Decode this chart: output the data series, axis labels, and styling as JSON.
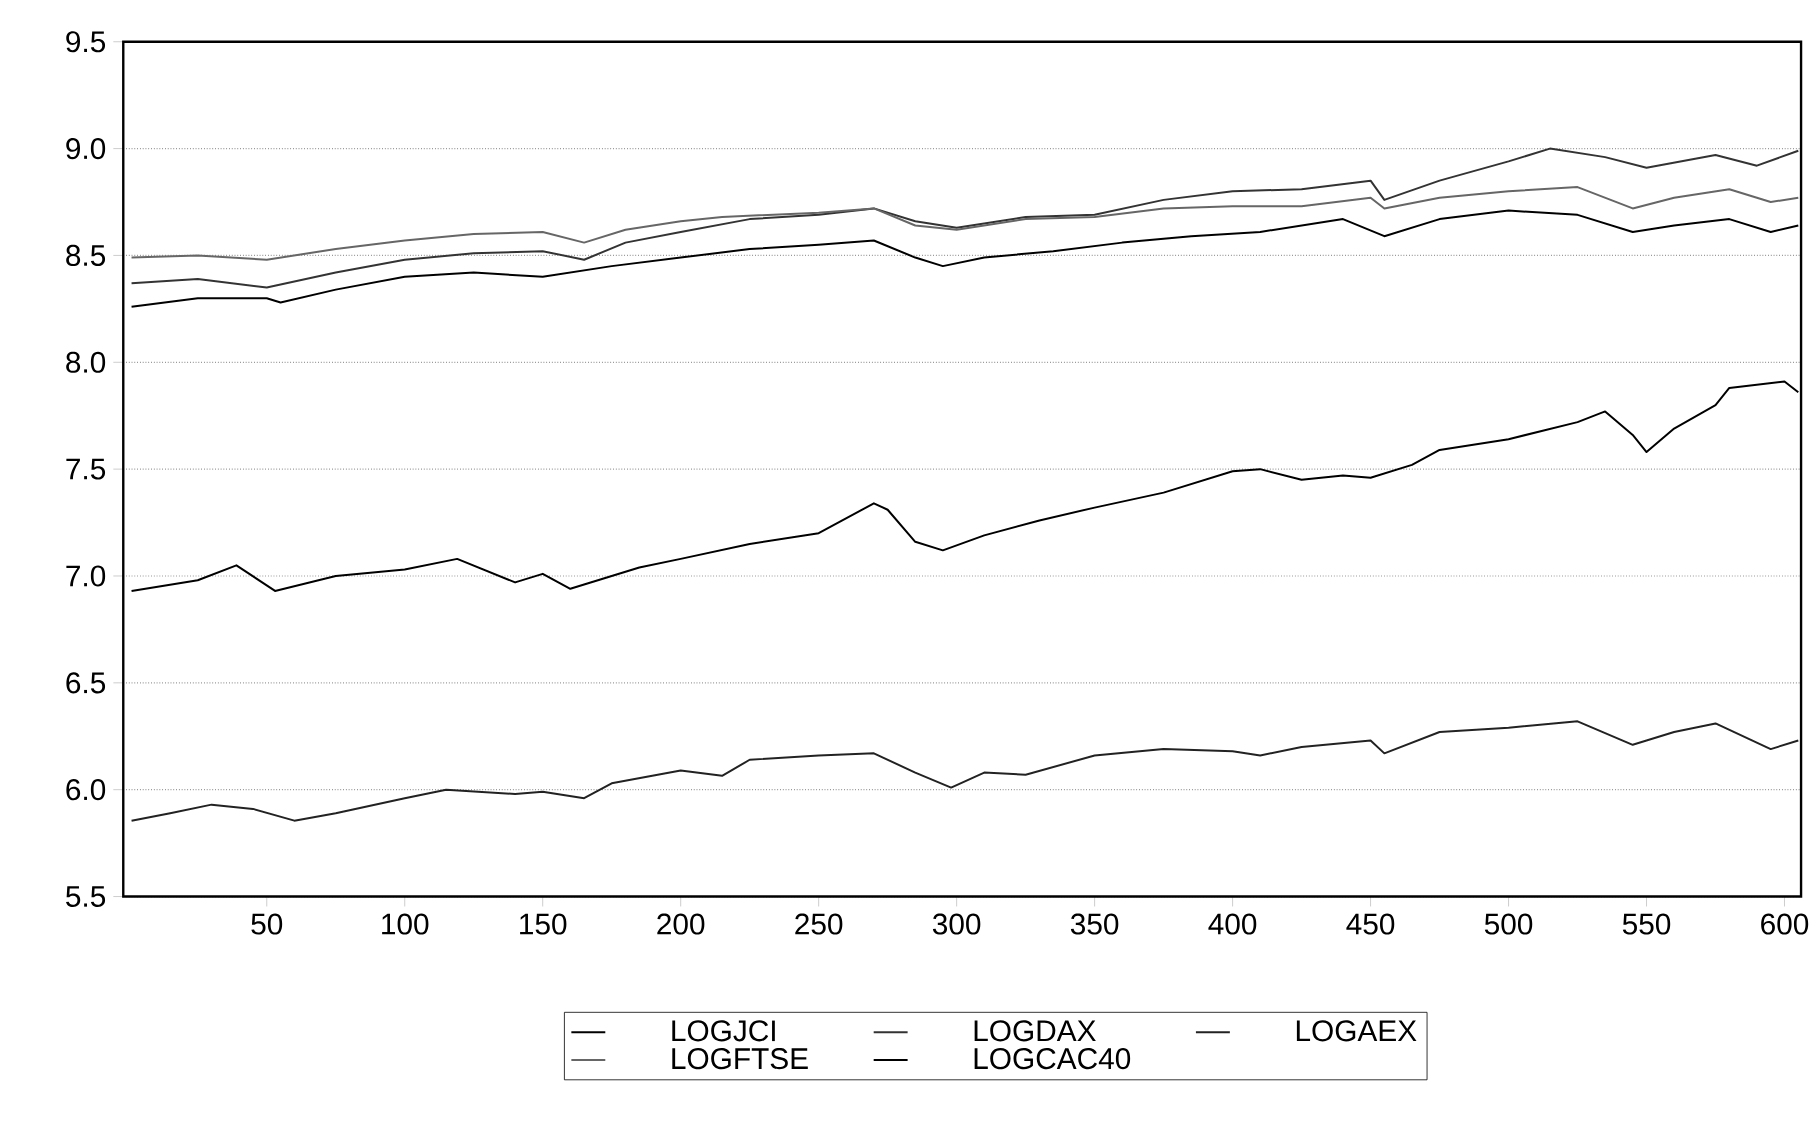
{
  "chart_data": {
    "type": "line",
    "x": [
      1,
      25,
      50,
      75,
      100,
      125,
      150,
      165,
      180,
      200,
      215,
      250,
      270,
      285,
      300,
      325,
      350,
      375,
      400,
      425,
      450,
      455,
      475,
      500,
      525,
      545,
      560,
      580,
      595,
      605
    ],
    "series": [
      {
        "name": "LOGJCI",
        "color": "#000000",
        "x": [
          1,
          25,
          39,
          53,
          75,
          100,
          119,
          140,
          150,
          160,
          175,
          185,
          200,
          225,
          250,
          270,
          275,
          285,
          295,
          310,
          330,
          350,
          375,
          400,
          410,
          425,
          440,
          450,
          465,
          475,
          500,
          525,
          535,
          545,
          550,
          560,
          575,
          580,
          600,
          605
        ],
        "values": [
          6.93,
          6.98,
          7.05,
          6.93,
          7.0,
          7.03,
          7.08,
          6.97,
          7.01,
          6.94,
          7.0,
          7.04,
          7.08,
          7.15,
          7.2,
          7.34,
          7.31,
          7.16,
          7.12,
          7.19,
          7.26,
          7.32,
          7.39,
          7.49,
          7.5,
          7.45,
          7.47,
          7.46,
          7.52,
          7.59,
          7.64,
          7.72,
          7.77,
          7.66,
          7.58,
          7.69,
          7.8,
          7.88,
          7.91,
          7.86
        ]
      },
      {
        "name": "LOGDAX",
        "color": "#333333",
        "x": [
          1,
          25,
          50,
          75,
          100,
          125,
          150,
          165,
          180,
          200,
          225,
          250,
          270,
          285,
          300,
          325,
          350,
          375,
          400,
          425,
          450,
          455,
          475,
          500,
          515,
          535,
          550,
          575,
          590,
          605
        ],
        "values": [
          8.37,
          8.39,
          8.35,
          8.42,
          8.48,
          8.51,
          8.52,
          8.48,
          8.56,
          8.61,
          8.67,
          8.69,
          8.72,
          8.66,
          8.63,
          8.68,
          8.69,
          8.76,
          8.8,
          8.81,
          8.85,
          8.76,
          8.85,
          8.94,
          9.0,
          8.96,
          8.91,
          8.97,
          8.92,
          8.99
        ]
      },
      {
        "name": "LOGAEX",
        "color": "#222222",
        "x": [
          1,
          15,
          30,
          45,
          60,
          75,
          100,
          115,
          140,
          150,
          165,
          175,
          200,
          215,
          225,
          250,
          270,
          285,
          298,
          310,
          325,
          350,
          375,
          400,
          410,
          425,
          450,
          455,
          475,
          500,
          525,
          545,
          560,
          575,
          595,
          605
        ],
        "values": [
          5.855,
          5.89,
          5.93,
          5.91,
          5.855,
          5.89,
          5.96,
          6.0,
          5.98,
          5.99,
          5.96,
          6.03,
          6.09,
          6.065,
          6.14,
          6.16,
          6.17,
          6.08,
          6.01,
          6.08,
          6.07,
          6.16,
          6.19,
          6.18,
          6.16,
          6.2,
          6.23,
          6.17,
          6.27,
          6.29,
          6.32,
          6.21,
          6.27,
          6.31,
          6.19,
          6.23
        ]
      },
      {
        "name": "LOGFTSE",
        "color": "#666666",
        "values": [
          8.49,
          8.5,
          8.48,
          8.53,
          8.57,
          8.6,
          8.61,
          8.56,
          8.62,
          8.66,
          8.68,
          8.7,
          8.72,
          8.64,
          8.62,
          8.67,
          8.68,
          8.72,
          8.73,
          8.73,
          8.77,
          8.72,
          8.77,
          8.8,
          8.82,
          8.72,
          8.77,
          8.81,
          8.75,
          8.77
        ]
      },
      {
        "name": "LOGCAC40",
        "color": "#000000",
        "x": [
          1,
          25,
          50,
          55,
          75,
          100,
          125,
          150,
          175,
          200,
          225,
          250,
          270,
          285,
          295,
          310,
          335,
          360,
          385,
          410,
          440,
          455,
          475,
          500,
          525,
          545,
          560,
          580,
          595,
          605
        ],
        "values": [
          8.26,
          8.3,
          8.3,
          8.28,
          8.34,
          8.4,
          8.42,
          8.4,
          8.45,
          8.49,
          8.53,
          8.55,
          8.57,
          8.49,
          8.45,
          8.49,
          8.52,
          8.56,
          8.59,
          8.61,
          8.67,
          8.59,
          8.67,
          8.71,
          8.69,
          8.61,
          8.64,
          8.67,
          8.61,
          8.64
        ]
      }
    ],
    "xlim": [
      -2,
      606
    ],
    "ylim": [
      5.5,
      9.5
    ],
    "xticks": [
      50,
      100,
      150,
      200,
      250,
      300,
      350,
      400,
      450,
      500,
      550,
      600
    ],
    "yticks": [
      {
        "value": 5.5,
        "label": "5.5"
      },
      {
        "value": 6.0,
        "label": "6.0"
      },
      {
        "value": 6.5,
        "label": "6.5"
      },
      {
        "value": 7.0,
        "label": "7.0"
      },
      {
        "value": 7.5,
        "label": "7.5"
      },
      {
        "value": 8.0,
        "label": "8.0"
      },
      {
        "value": 8.5,
        "label": "8.5"
      },
      {
        "value": 9.0,
        "label": "9.0"
      },
      {
        "value": 9.5,
        "label": "9.5"
      }
    ],
    "grid": "y",
    "legend": "bottom",
    "marker": "none",
    "line_style": "solid"
  }
}
